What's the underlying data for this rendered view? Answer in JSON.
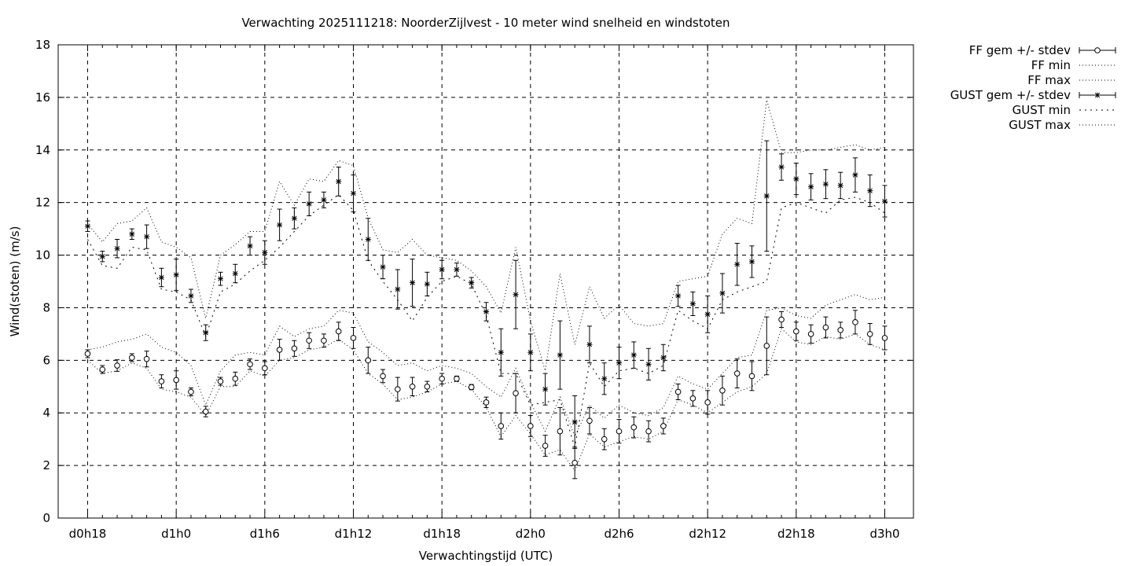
{
  "chart_data": {
    "type": "line",
    "title": "Verwachting 2025111218: NoorderZijlvest - 10 meter wind snelheid en windstoten",
    "xlabel": "Verwachtingstijd (UTC)",
    "ylabel": "Wind(stoten) (m/s)",
    "ylim": [
      0,
      18
    ],
    "yticks": [
      0,
      2,
      4,
      6,
      8,
      10,
      12,
      14,
      16,
      18
    ],
    "xlim": [
      -1.5,
      56.5
    ],
    "x_unit": "hours since d0h18",
    "xticks": [
      {
        "x": 0,
        "label": "d0h18"
      },
      {
        "x": 6,
        "label": "d1h0"
      },
      {
        "x": 12,
        "label": "d1h6"
      },
      {
        "x": 18,
        "label": "d1h12"
      },
      {
        "x": 24,
        "label": "d1h18"
      },
      {
        "x": 30,
        "label": "d2h0"
      },
      {
        "x": 36,
        "label": "d2h6"
      },
      {
        "x": 42,
        "label": "d2h12"
      },
      {
        "x": 48,
        "label": "d2h18"
      },
      {
        "x": 54,
        "label": "d3h0"
      }
    ],
    "grid": true,
    "legend_position": "outside-top-right",
    "x": [
      0,
      1,
      2,
      3,
      4,
      5,
      6,
      7,
      8,
      9,
      10,
      11,
      12,
      13,
      14,
      15,
      16,
      17,
      18,
      19,
      20,
      21,
      22,
      23,
      24,
      25,
      26,
      27,
      28,
      29,
      30,
      31,
      32,
      33,
      34,
      35,
      36,
      37,
      38,
      39,
      40,
      41,
      42,
      43,
      44,
      45,
      46,
      47,
      48,
      49,
      50,
      51,
      52,
      53,
      54
    ],
    "series": [
      {
        "name": "FF gem +/- stdev",
        "style": "points-errorbars",
        "marker": "circle",
        "values": [
          6.25,
          5.65,
          5.8,
          6.1,
          6.05,
          5.2,
          5.25,
          4.8,
          4.05,
          5.2,
          5.3,
          5.85,
          5.7,
          6.4,
          6.45,
          6.75,
          6.75,
          7.1,
          6.85,
          6.0,
          5.4,
          4.9,
          5.0,
          5.0,
          5.3,
          5.3,
          4.98,
          4.4,
          3.5,
          4.75,
          3.5,
          2.75,
          3.3,
          2.1,
          3.7,
          3.0,
          3.3,
          3.45,
          3.3,
          3.5,
          4.8,
          4.55,
          4.4,
          4.85,
          5.5,
          5.4,
          6.55,
          7.55,
          7.1,
          7.0,
          7.25,
          7.15,
          7.45,
          7.0,
          6.85
        ],
        "stdev": [
          0.15,
          0.15,
          0.22,
          0.15,
          0.3,
          0.25,
          0.35,
          0.15,
          0.2,
          0.15,
          0.25,
          0.2,
          0.25,
          0.4,
          0.3,
          0.3,
          0.25,
          0.35,
          0.4,
          0.5,
          0.25,
          0.45,
          0.35,
          0.2,
          0.2,
          0.1,
          0.1,
          0.2,
          0.5,
          0.75,
          0.4,
          0.4,
          0.9,
          0.6,
          0.5,
          0.4,
          0.45,
          0.4,
          0.4,
          0.3,
          0.3,
          0.3,
          0.45,
          0.55,
          0.55,
          0.55,
          1.1,
          0.3,
          0.35,
          0.35,
          0.4,
          0.3,
          0.45,
          0.4,
          0.45
        ]
      },
      {
        "name": "FF min",
        "style": "dotted-line",
        "values": [
          6.0,
          5.5,
          5.6,
          5.9,
          5.7,
          4.9,
          4.8,
          4.6,
          3.9,
          5.0,
          5.0,
          5.6,
          5.4,
          6.0,
          6.1,
          6.4,
          6.5,
          6.8,
          6.4,
          5.5,
          5.1,
          4.5,
          4.6,
          4.8,
          5.1,
          5.2,
          4.9,
          4.2,
          3.1,
          3.9,
          3.2,
          2.4,
          2.6,
          1.8,
          3.2,
          2.7,
          2.9,
          3.1,
          3.0,
          3.3,
          4.5,
          4.3,
          4.0,
          4.4,
          4.8,
          5.0,
          5.5,
          7.2,
          6.7,
          6.6,
          6.9,
          6.8,
          7.0,
          6.6,
          6.4
        ]
      },
      {
        "name": "FF max",
        "style": "dotted-line",
        "values": [
          6.4,
          6.5,
          6.7,
          6.8,
          7.0,
          6.5,
          6.3,
          5.8,
          4.3,
          5.6,
          6.2,
          6.3,
          6.2,
          7.3,
          6.9,
          7.2,
          7.3,
          7.9,
          7.8,
          6.7,
          6.3,
          5.8,
          5.9,
          5.6,
          5.8,
          5.7,
          5.5,
          5.0,
          4.6,
          5.7,
          4.4,
          3.3,
          4.6,
          3.1,
          4.3,
          3.8,
          4.3,
          4.0,
          3.9,
          4.2,
          5.4,
          5.1,
          4.9,
          5.5,
          6.1,
          6.2,
          7.9,
          8.0,
          7.7,
          7.6,
          8.1,
          8.3,
          8.5,
          8.3,
          8.4
        ]
      },
      {
        "name": "GUST gem +/- stdev",
        "style": "points-errorbars",
        "marker": "asterisk",
        "values": [
          11.1,
          9.95,
          10.25,
          10.8,
          10.7,
          9.15,
          9.25,
          8.45,
          7.05,
          9.1,
          9.3,
          10.35,
          10.1,
          11.15,
          11.4,
          11.95,
          12.1,
          12.8,
          12.35,
          10.6,
          9.55,
          8.7,
          8.95,
          8.9,
          9.45,
          9.45,
          8.95,
          7.85,
          6.3,
          8.5,
          6.3,
          4.9,
          6.2,
          3.65,
          6.6,
          5.3,
          5.9,
          6.2,
          5.85,
          6.1,
          8.45,
          8.15,
          7.75,
          8.55,
          9.65,
          9.75,
          12.25,
          13.35,
          12.9,
          12.6,
          12.7,
          12.65,
          13.05,
          12.45,
          12.05
        ],
        "stdev": [
          0.2,
          0.2,
          0.35,
          0.2,
          0.45,
          0.35,
          0.6,
          0.25,
          0.3,
          0.25,
          0.35,
          0.35,
          0.45,
          0.6,
          0.4,
          0.45,
          0.3,
          0.55,
          0.7,
          0.8,
          0.45,
          0.75,
          0.9,
          0.45,
          0.35,
          0.25,
          0.2,
          0.35,
          0.9,
          1.3,
          0.7,
          0.6,
          1.3,
          1.0,
          0.7,
          0.6,
          0.6,
          0.5,
          0.6,
          0.5,
          0.4,
          0.45,
          0.7,
          0.75,
          0.8,
          0.6,
          2.1,
          0.5,
          0.6,
          0.5,
          0.55,
          0.5,
          0.65,
          0.6,
          0.6
        ]
      },
      {
        "name": "GUST min",
        "style": "dotted-line",
        "values": [
          10.6,
          9.6,
          9.5,
          10.3,
          10.2,
          8.7,
          8.6,
          8.3,
          6.9,
          8.6,
          8.9,
          9.4,
          9.8,
          10.3,
          10.9,
          11.5,
          11.9,
          12.3,
          11.7,
          9.8,
          9.0,
          8.3,
          7.5,
          8.4,
          9.0,
          9.2,
          8.9,
          7.7,
          5.5,
          5.5,
          4.3,
          4.4,
          4.5,
          2.7,
          5.9,
          5.0,
          5.6,
          5.7,
          5.5,
          5.8,
          7.9,
          7.5,
          7.2,
          8.3,
          8.6,
          8.8,
          9.0,
          11.8,
          12.0,
          11.8,
          11.6,
          12.1,
          12.2,
          12.0,
          11.6
        ]
      },
      {
        "name": "GUST max",
        "style": "dotted-line",
        "values": [
          11.2,
          10.5,
          11.2,
          11.3,
          11.8,
          10.5,
          10.3,
          9.9,
          7.6,
          10.0,
          10.4,
          10.9,
          10.9,
          12.8,
          11.9,
          12.9,
          12.8,
          13.6,
          13.4,
          11.4,
          10.2,
          10.1,
          10.6,
          10.0,
          9.9,
          9.8,
          9.4,
          8.8,
          7.8,
          10.3,
          7.5,
          5.6,
          9.3,
          6.6,
          8.8,
          7.6,
          8.1,
          7.4,
          7.3,
          7.4,
          9.0,
          9.1,
          9.2,
          10.8,
          11.4,
          11.2,
          15.9,
          13.9,
          13.9,
          14.0,
          14.0,
          14.1,
          14.2,
          14.0,
          14.1
        ]
      }
    ]
  }
}
